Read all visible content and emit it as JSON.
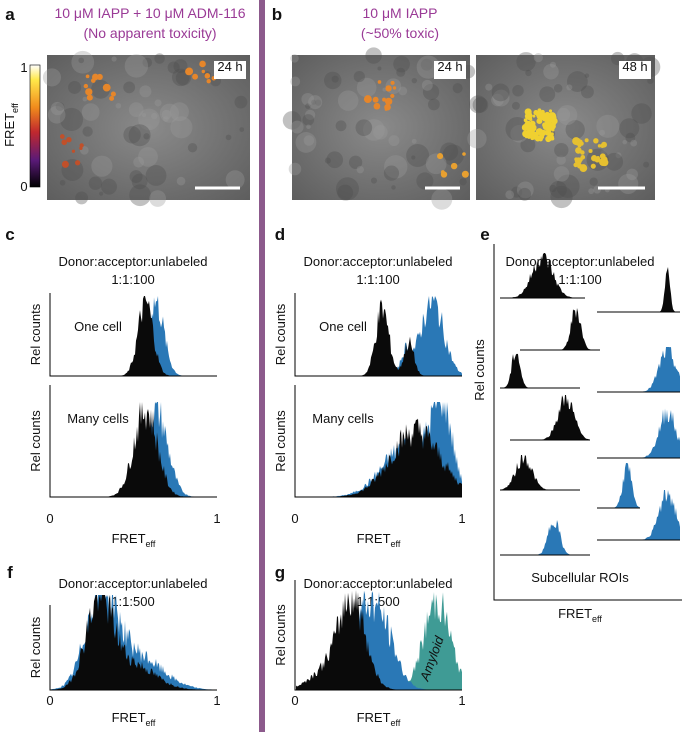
{
  "panels": {
    "a": {
      "label": "a",
      "title": [
        "10 μM IAPP + 10 μM ADM-116",
        "(No apparent toxicity)"
      ],
      "time": "24 h",
      "colorbar": {
        "label": "FRET",
        "sub": "eff",
        "top": "1",
        "bottom": "0"
      }
    },
    "b": {
      "label": "b",
      "title": [
        "10 μM IAPP",
        "(~50% toxic)"
      ],
      "times": [
        "24 h",
        "48 h"
      ]
    },
    "c": {
      "label": "c",
      "condition": [
        "Donor:acceptor:unlabeled",
        "1:1:100"
      ],
      "ylabel": "Rel counts",
      "plots": [
        "One cell",
        "Many cells"
      ],
      "xticks": [
        "0",
        "1"
      ],
      "xlabel": "FRET",
      "xsub": "eff"
    },
    "d": {
      "label": "d",
      "condition": [
        "Donor:acceptor:unlabeled",
        "1:1:100"
      ],
      "ylabel": "Rel counts",
      "plots": [
        "One cell",
        "Many cells"
      ],
      "xticks": [
        "0",
        "1"
      ],
      "xlabel": "FRET",
      "xsub": "eff"
    },
    "e": {
      "label": "e",
      "condition": [
        "Donor:acceptor:unlabeled",
        "1:1:100"
      ],
      "ylabel": "Rel counts",
      "caption": "Subcellular ROIs",
      "xlabel": "FRET",
      "xsub": "eff"
    },
    "f": {
      "label": "f",
      "condition": [
        "Donor:acceptor:unlabeled",
        "1:1:500"
      ],
      "ylabel": "Rel counts",
      "xticks": [
        "0",
        "1"
      ],
      "xlabel": "FRET",
      "xsub": "eff"
    },
    "g": {
      "label": "g",
      "condition": [
        "Donor:acceptor:unlabeled",
        "1:1:500"
      ],
      "ylabel": "Rel counts",
      "xticks": [
        "0",
        "1"
      ],
      "xlabel": "FRET",
      "xsub": "eff",
      "annotation": "Amyloid"
    }
  }
}
